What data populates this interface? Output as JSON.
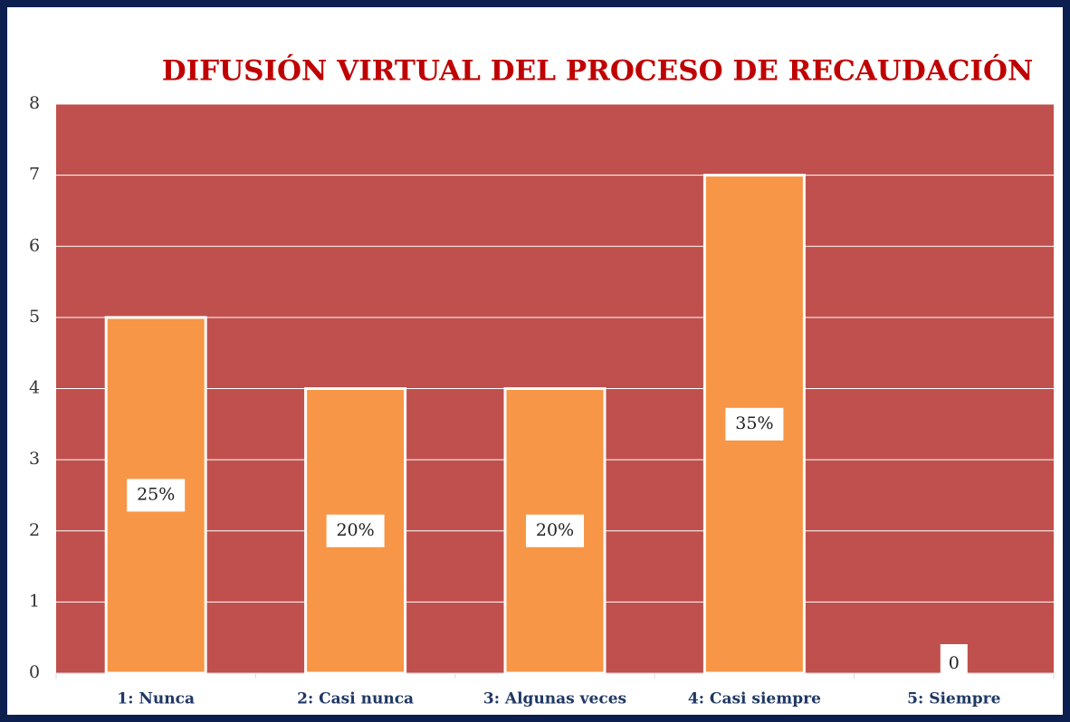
{
  "chart_data": {
    "type": "bar",
    "title": "DIFUSIÓN VIRTUAL DEL PROCESO DE RECAUDACIÓN",
    "categories": [
      "1: Nunca",
      "2: Casi nunca",
      "3: Algunas veces",
      "4: Casi siempre",
      "5: Siempre"
    ],
    "values": [
      5,
      4,
      4,
      7,
      0
    ],
    "data_labels": [
      "25%",
      "20%",
      "20%",
      "35%",
      "0"
    ],
    "color": "#f79646",
    "plot_background": "#c0504d",
    "title_color": "#c00000",
    "ylim": [
      0,
      8
    ],
    "yticks": [
      0,
      1,
      2,
      3,
      4,
      5,
      6,
      7,
      8
    ],
    "grid": true
  }
}
